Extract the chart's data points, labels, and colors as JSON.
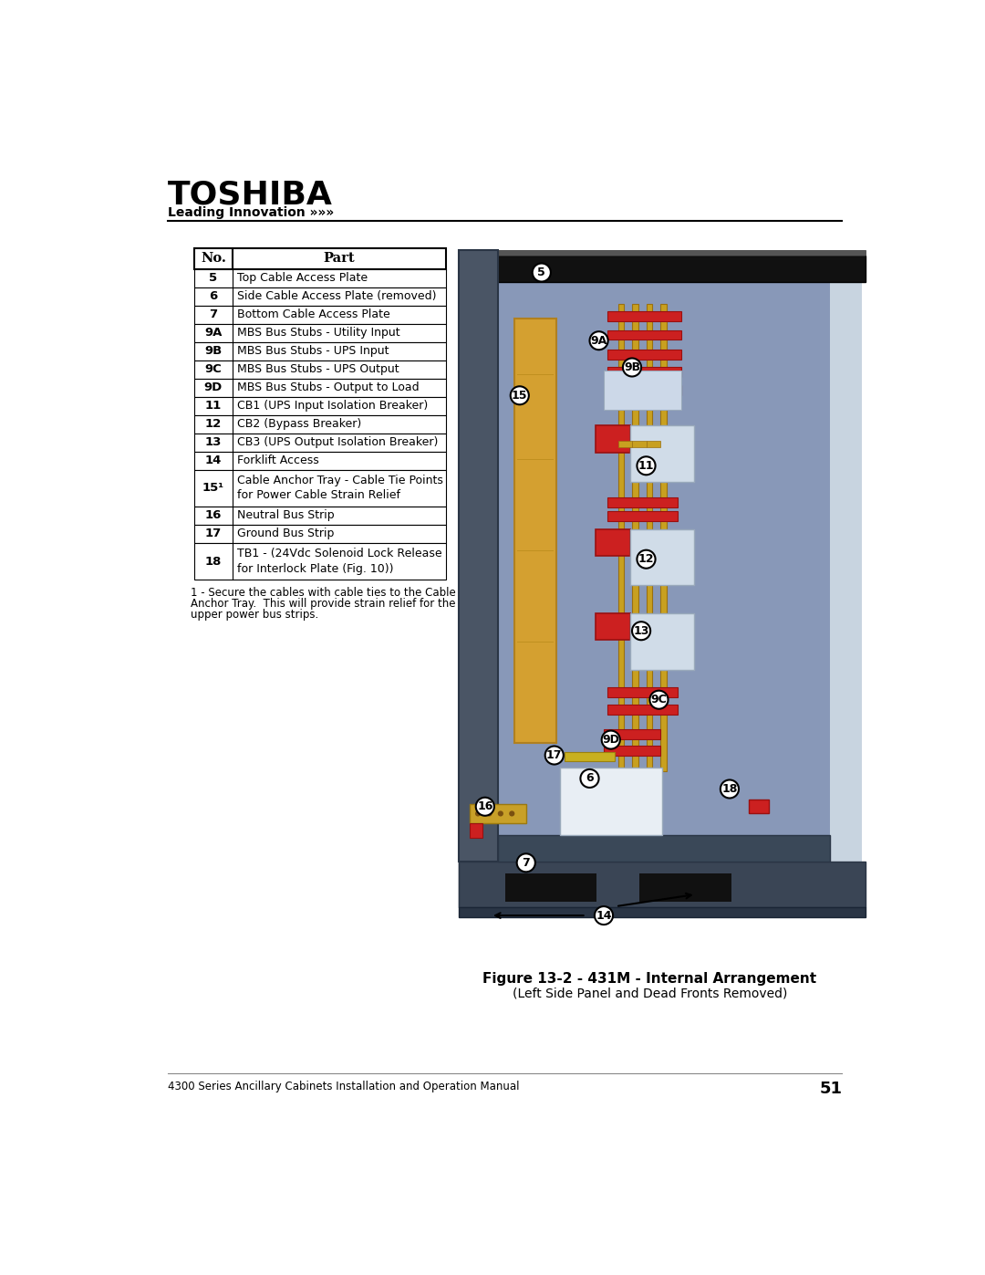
{
  "page_width": 10.8,
  "page_height": 13.97,
  "dpi": 100,
  "bg_color": "#ffffff",
  "header_title": "TOSHIBA",
  "header_subtitle": "Leading Innovation »»»",
  "footer_text": "4300 Series Ancillary Cabinets Installation and Operation Manual",
  "footer_page": "51",
  "table_headers": [
    "No.",
    "Part"
  ],
  "table_rows": [
    [
      "5",
      "Top Cable Access Plate"
    ],
    [
      "6",
      "Side Cable Access Plate (removed)"
    ],
    [
      "7",
      "Bottom Cable Access Plate"
    ],
    [
      "9A",
      "MBS Bus Stubs - Utility Input"
    ],
    [
      "9B",
      "MBS Bus Stubs - UPS Input"
    ],
    [
      "9C",
      "MBS Bus Stubs - UPS Output"
    ],
    [
      "9D",
      "MBS Bus Stubs - Output to Load"
    ],
    [
      "11",
      "CB1 (UPS Input Isolation Breaker)"
    ],
    [
      "12",
      "CB2 (Bypass Breaker)"
    ],
    [
      "13",
      "CB3 (UPS Output Isolation Breaker)"
    ],
    [
      "14",
      "Forklift Access"
    ],
    [
      "15¹",
      "Cable Anchor Tray - Cable Tie Points\nfor Power Cable Strain Relief"
    ],
    [
      "16",
      "Neutral Bus Strip"
    ],
    [
      "17",
      "Ground Bus Strip"
    ],
    [
      "18",
      "TB1 - (24Vdc Solenoid Lock Release\nfor Interlock Plate (Fig. 10))"
    ]
  ],
  "footnote": "1 - Secure the cables with cable ties to the Cable\nAnchor Tray.  This will provide strain relief for the\nupper power bus strips.",
  "figure_caption_bold": "Figure 13-2 - 431M - Internal Arrangement",
  "figure_caption_normal": "(Left Side Panel and Dead Fronts Removed)",
  "cab_main_color": "#5a6b8a",
  "cab_left_color": "#4a5a72",
  "cab_top_color": "#1a1a1a",
  "cab_inner_color": "#8898b8",
  "cab_base_color": "#3a4a5a",
  "cab_foot_color": "#2a3545",
  "bus_bar_color": "#c8a020",
  "tray_color": "#d4a030",
  "red_color": "#cc2020",
  "white_box_color": "#e8eef4",
  "neutral_color": "#d4a830",
  "callout_bg": "#ffffff"
}
